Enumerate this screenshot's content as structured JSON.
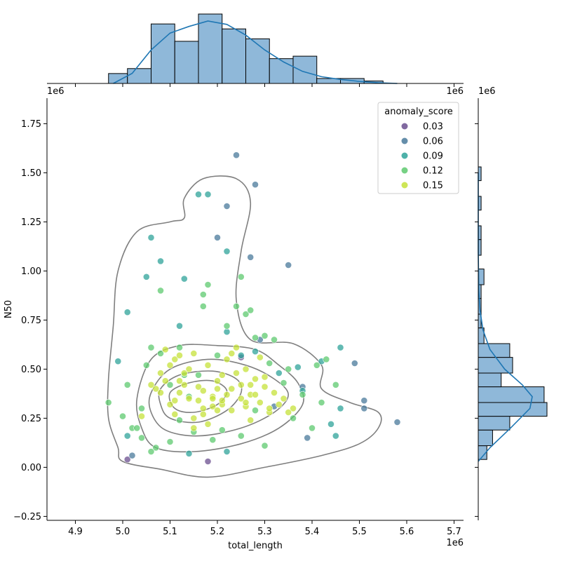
{
  "chart_data": {
    "type": "scatter",
    "title": "",
    "xlabel": "total_length",
    "ylabel": "N50",
    "x_offset_label": "1e6",
    "y_offset_label": "1e6",
    "xlim": [
      4.84,
      5.72
    ],
    "ylim": [
      -0.27,
      1.88
    ],
    "xticks": [
      4.9,
      5.0,
      5.1,
      5.2,
      5.3,
      5.4,
      5.5,
      5.6,
      5.7
    ],
    "xtick_labels": [
      "4.9",
      "5.0",
      "5.1",
      "5.2",
      "5.3",
      "5.4",
      "5.5",
      "5.6",
      "5.7"
    ],
    "yticks": [
      -0.25,
      0.0,
      0.25,
      0.5,
      0.75,
      1.0,
      1.25,
      1.5,
      1.75
    ],
    "ytick_labels": [
      "−0.25",
      "0.00",
      "0.25",
      "0.50",
      "0.75",
      "1.00",
      "1.25",
      "1.50",
      "1.75"
    ],
    "top_axis_offset_label": "1e6",
    "top_axis_offset_label_right": "1e6",
    "right_axis_offset_label": "1e6",
    "legend": {
      "title": "anomaly_score",
      "placement": "top-right",
      "entries": [
        {
          "label": "0.03",
          "color": "#6b4f8f"
        },
        {
          "label": "0.06",
          "color": "#4a7a9b"
        },
        {
          "label": "0.09",
          "color": "#2fa39a"
        },
        {
          "label": "0.12",
          "color": "#5ec96f"
        },
        {
          "label": "0.15",
          "color": "#c6e23a"
        }
      ]
    },
    "kde_contours": [
      [
        [
          5.0,
          0.03
        ],
        [
          5.08,
          -0.01
        ],
        [
          5.18,
          -0.05
        ],
        [
          5.3,
          0.0
        ],
        [
          5.42,
          0.06
        ],
        [
          5.5,
          0.12
        ],
        [
          5.54,
          0.2
        ],
        [
          5.54,
          0.28
        ],
        [
          5.48,
          0.33
        ],
        [
          5.42,
          0.4
        ],
        [
          5.42,
          0.52
        ],
        [
          5.36,
          0.63
        ],
        [
          5.27,
          0.65
        ],
        [
          5.24,
          0.85
        ],
        [
          5.25,
          1.1
        ],
        [
          5.27,
          1.35
        ],
        [
          5.24,
          1.47
        ],
        [
          5.17,
          1.47
        ],
        [
          5.13,
          1.37
        ],
        [
          5.13,
          1.27
        ],
        [
          5.1,
          1.25
        ],
        [
          5.03,
          1.2
        ],
        [
          4.99,
          1.0
        ],
        [
          4.98,
          0.72
        ],
        [
          4.97,
          0.45
        ],
        [
          4.97,
          0.25
        ],
        [
          4.99,
          0.1
        ]
      ],
      [
        [
          5.03,
          0.35
        ],
        [
          5.06,
          0.55
        ],
        [
          5.12,
          0.62
        ],
        [
          5.2,
          0.62
        ],
        [
          5.28,
          0.6
        ],
        [
          5.33,
          0.52
        ],
        [
          5.37,
          0.43
        ],
        [
          5.38,
          0.32
        ],
        [
          5.33,
          0.2
        ],
        [
          5.25,
          0.12
        ],
        [
          5.15,
          0.08
        ],
        [
          5.07,
          0.1
        ],
        [
          5.04,
          0.2
        ]
      ],
      [
        [
          5.06,
          0.38
        ],
        [
          5.1,
          0.5
        ],
        [
          5.18,
          0.55
        ],
        [
          5.26,
          0.52
        ],
        [
          5.32,
          0.45
        ],
        [
          5.35,
          0.37
        ],
        [
          5.32,
          0.28
        ],
        [
          5.25,
          0.2
        ],
        [
          5.16,
          0.16
        ],
        [
          5.09,
          0.19
        ],
        [
          5.06,
          0.28
        ]
      ],
      [
        [
          5.08,
          0.4
        ],
        [
          5.12,
          0.47
        ],
        [
          5.19,
          0.49
        ],
        [
          5.24,
          0.45
        ],
        [
          5.25,
          0.38
        ],
        [
          5.22,
          0.29
        ],
        [
          5.16,
          0.23
        ],
        [
          5.1,
          0.25
        ],
        [
          5.08,
          0.32
        ]
      ],
      [
        [
          5.1,
          0.38
        ],
        [
          5.14,
          0.43
        ],
        [
          5.19,
          0.44
        ],
        [
          5.22,
          0.39
        ],
        [
          5.2,
          0.32
        ],
        [
          5.15,
          0.28
        ],
        [
          5.11,
          0.3
        ]
      ]
    ],
    "top_histogram": {
      "bin_edges": [
        4.97,
        5.01,
        5.06,
        5.11,
        5.16,
        5.21,
        5.26,
        5.31,
        5.36,
        5.41,
        5.46,
        5.51,
        5.55
      ],
      "counts": [
        4,
        6,
        24,
        17,
        28,
        22,
        18,
        10,
        11,
        2,
        2,
        1
      ]
    },
    "top_kde": [
      [
        4.98,
        0.0
      ],
      [
        5.02,
        0.15
      ],
      [
        5.06,
        0.5
      ],
      [
        5.1,
        0.75
      ],
      [
        5.14,
        0.85
      ],
      [
        5.18,
        0.93
      ],
      [
        5.22,
        0.88
      ],
      [
        5.26,
        0.72
      ],
      [
        5.3,
        0.5
      ],
      [
        5.34,
        0.32
      ],
      [
        5.38,
        0.18
      ],
      [
        5.42,
        0.1
      ],
      [
        5.46,
        0.06
      ],
      [
        5.5,
        0.03
      ],
      [
        5.54,
        0.01
      ],
      [
        5.58,
        0.0
      ]
    ],
    "right_histogram": {
      "bin_edges": [
        0.04,
        0.11,
        0.19,
        0.26,
        0.33,
        0.41,
        0.48,
        0.56,
        0.63,
        0.71,
        0.78,
        0.86,
        0.93,
        1.01,
        1.08,
        1.16,
        1.23,
        1.31,
        1.38,
        1.46,
        1.53
      ],
      "counts": [
        3,
        5,
        11,
        24,
        23,
        8,
        12,
        11,
        2,
        1,
        1,
        1,
        2,
        0,
        1,
        1,
        0,
        1,
        0,
        1
      ]
    },
    "right_kde": [
      [
        0.03,
        0.0
      ],
      [
        0.1,
        0.2
      ],
      [
        0.2,
        0.55
      ],
      [
        0.3,
        0.88
      ],
      [
        0.36,
        0.92
      ],
      [
        0.42,
        0.75
      ],
      [
        0.5,
        0.45
      ],
      [
        0.6,
        0.2
      ],
      [
        0.7,
        0.08
      ],
      [
        0.8,
        0.03
      ],
      [
        0.9,
        0.01
      ],
      [
        1.1,
        0.0
      ],
      [
        1.5,
        0.0
      ]
    ],
    "series": [
      {
        "name": "0.03",
        "x": [
          5.01,
          5.18,
          5.25
        ],
        "y": [
          0.04,
          0.03,
          0.56
        ]
      },
      {
        "name": "0.06",
        "x": [
          5.02,
          5.2,
          5.24,
          5.27,
          5.29,
          5.32,
          5.35,
          5.39,
          5.38,
          5.49,
          5.51,
          5.51,
          5.58,
          5.28,
          5.22
        ],
        "y": [
          0.06,
          1.17,
          1.59,
          1.07,
          0.65,
          0.31,
          1.03,
          0.15,
          0.41,
          0.53,
          0.34,
          0.3,
          0.23,
          1.44,
          1.33
        ]
      },
      {
        "name": "0.09",
        "x": [
          5.01,
          5.06,
          5.08,
          5.13,
          5.16,
          5.18,
          5.22,
          5.22,
          5.25,
          5.28,
          5.33,
          5.37,
          5.38,
          5.42,
          5.44,
          5.45,
          5.46,
          5.46,
          5.22,
          5.01,
          4.99,
          5.14,
          5.12,
          5.05
        ],
        "y": [
          0.79,
          1.17,
          1.05,
          0.96,
          1.39,
          1.39,
          1.1,
          0.69,
          0.57,
          0.59,
          0.48,
          0.51,
          0.39,
          0.54,
          0.22,
          0.16,
          0.3,
          0.61,
          0.08,
          0.16,
          0.54,
          0.07,
          0.72,
          0.97
        ]
      },
      {
        "name": "0.12",
        "x": [
          4.97,
          5.0,
          5.01,
          5.02,
          5.04,
          5.05,
          5.06,
          5.08,
          5.08,
          5.1,
          5.12,
          5.14,
          5.16,
          5.17,
          5.17,
          5.18,
          5.2,
          5.22,
          5.24,
          5.25,
          5.26,
          5.27,
          5.28,
          5.3,
          5.31,
          5.32,
          5.34,
          5.36,
          5.38,
          5.4,
          5.42,
          5.43,
          5.45,
          5.15,
          5.1,
          5.07,
          5.03,
          5.25,
          5.28,
          5.3,
          5.06,
          5.12,
          5.19,
          5.21,
          5.13,
          5.04,
          5.35,
          5.41
        ],
        "y": [
          0.33,
          0.26,
          0.42,
          0.2,
          0.3,
          0.52,
          0.61,
          0.9,
          0.58,
          0.42,
          0.61,
          0.36,
          0.47,
          0.82,
          0.88,
          0.93,
          0.57,
          0.72,
          0.82,
          0.97,
          0.78,
          0.8,
          0.66,
          0.67,
          0.53,
          0.65,
          0.43,
          0.25,
          0.37,
          0.2,
          0.33,
          0.55,
          0.42,
          0.18,
          0.13,
          0.1,
          0.2,
          0.16,
          0.29,
          0.11,
          0.08,
          0.24,
          0.14,
          0.19,
          0.47,
          0.15,
          0.5,
          0.52
        ]
      },
      {
        "name": "0.15",
        "x": [
          5.08,
          5.09,
          5.1,
          5.11,
          5.12,
          5.13,
          5.14,
          5.15,
          5.16,
          5.17,
          5.18,
          5.19,
          5.2,
          5.21,
          5.22,
          5.23,
          5.24,
          5.25,
          5.26,
          5.27,
          5.28,
          5.29,
          5.3,
          5.31,
          5.32,
          5.34,
          5.36,
          5.09,
          5.11,
          5.13,
          5.15,
          5.17,
          5.19,
          5.21,
          5.23,
          5.25,
          5.27,
          5.29,
          5.1,
          5.14,
          5.18,
          5.22,
          5.26,
          5.3,
          5.07,
          5.12,
          5.16,
          5.2,
          5.24,
          5.28,
          5.33,
          5.06,
          5.35,
          5.04,
          5.15,
          5.19,
          5.23,
          5.26,
          5.08,
          5.12,
          5.17,
          5.21,
          5.27,
          5.31,
          5.11,
          5.2
        ],
        "y": [
          0.38,
          0.44,
          0.32,
          0.55,
          0.38,
          0.42,
          0.35,
          0.58,
          0.41,
          0.3,
          0.52,
          0.36,
          0.44,
          0.32,
          0.55,
          0.4,
          0.48,
          0.35,
          0.5,
          0.37,
          0.45,
          0.33,
          0.41,
          0.28,
          0.38,
          0.35,
          0.3,
          0.6,
          0.27,
          0.48,
          0.25,
          0.39,
          0.31,
          0.47,
          0.29,
          0.42,
          0.24,
          0.56,
          0.52,
          0.5,
          0.22,
          0.37,
          0.31,
          0.46,
          0.4,
          0.57,
          0.34,
          0.29,
          0.61,
          0.37,
          0.32,
          0.42,
          0.28,
          0.26,
          0.2,
          0.35,
          0.58,
          0.33,
          0.48,
          0.44,
          0.27,
          0.34,
          0.42,
          0.3,
          0.34,
          0.4
        ]
      }
    ]
  }
}
